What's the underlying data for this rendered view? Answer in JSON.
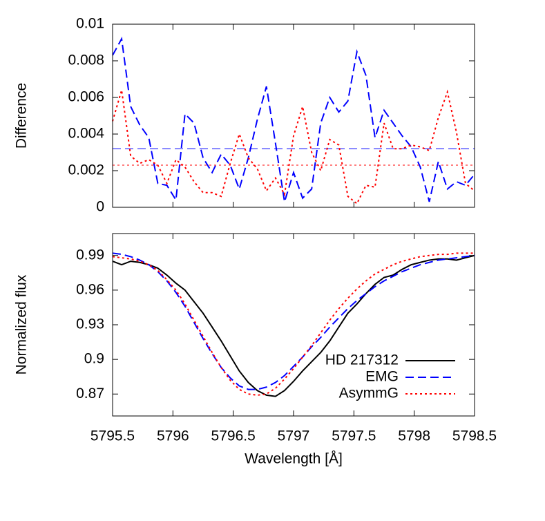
{
  "chart_data": [
    {
      "type": "line",
      "ylabel": "Difference",
      "x": [
        5795.5,
        5795.575,
        5795.65,
        5795.725,
        5795.8,
        5795.875,
        5795.95,
        5796.025,
        5796.1,
        5796.175,
        5796.25,
        5796.325,
        5796.4,
        5796.475,
        5796.55,
        5796.625,
        5796.7,
        5796.775,
        5796.85,
        5796.925,
        5797,
        5797.075,
        5797.15,
        5797.225,
        5797.3,
        5797.375,
        5797.45,
        5797.525,
        5797.6,
        5797.675,
        5797.75,
        5797.825,
        5797.9,
        5797.975,
        5798.05,
        5798.125,
        5798.2,
        5798.275,
        5798.35,
        5798.425,
        5798.5
      ],
      "series": [
        {
          "color": "#0000ff",
          "style": "dashed",
          "values": [
            0.0083,
            0.0092,
            0.0055,
            0.0045,
            0.0038,
            0.0013,
            0.0012,
            0.0004,
            0.0051,
            0.0046,
            0.0027,
            0.0019,
            0.0029,
            0.0023,
            0.001,
            0.0027,
            0.0048,
            0.0066,
            0.0035,
            0.0003,
            0.0019,
            0.0005,
            0.001,
            0.0046,
            0.006,
            0.0052,
            0.0058,
            0.0085,
            0.0072,
            0.0038,
            0.0053,
            0.0046,
            0.0039,
            0.0033,
            0.0022,
            0.0003,
            0.0025,
            0.001,
            0.0014,
            0.0012,
            0.0018
          ]
        },
        {
          "color": "#ff0000",
          "style": "dotted",
          "values": [
            0.0047,
            0.0064,
            0.0028,
            0.0024,
            0.0026,
            0.0023,
            0.0013,
            0.0026,
            0.0022,
            0.0014,
            0.0008,
            0.0008,
            0.0006,
            0.0024,
            0.004,
            0.0027,
            0.0021,
            0.0009,
            0.0016,
            0.0007,
            0.0039,
            0.0055,
            0.003,
            0.002,
            0.0037,
            0.0034,
            0.0006,
            0.0002,
            0.0012,
            0.0011,
            0.0046,
            0.0032,
            0.0032,
            0.0034,
            0.0033,
            0.0031,
            0.0049,
            0.0063,
            0.0041,
            0.0013,
            0.0009
          ]
        }
      ],
      "hlines": [
        {
          "value": 0.0032,
          "color": "#0000ff",
          "style": "dashed"
        },
        {
          "value": 0.0023,
          "color": "#ff0000",
          "style": "dotted"
        }
      ],
      "xlim": [
        5795.5,
        5798.5
      ],
      "xticks": [
        5795.5,
        5796,
        5796.5,
        5797,
        5797.5,
        5798,
        5798.5
      ],
      "ylim": [
        0,
        0.01
      ],
      "yticks": [
        0,
        0.002,
        0.004,
        0.006,
        0.008,
        0.01
      ]
    },
    {
      "type": "line",
      "ylabel": "Normalized flux",
      "xlabel": "Wavelength [Å]",
      "legend": "bottom-right",
      "x": [
        5795.5,
        5795.575,
        5795.65,
        5795.725,
        5795.8,
        5795.875,
        5795.95,
        5796.025,
        5796.1,
        5796.175,
        5796.25,
        5796.325,
        5796.4,
        5796.475,
        5796.55,
        5796.625,
        5796.7,
        5796.775,
        5796.85,
        5796.925,
        5797,
        5797.075,
        5797.15,
        5797.225,
        5797.3,
        5797.375,
        5797.45,
        5797.525,
        5797.6,
        5797.675,
        5797.75,
        5797.825,
        5797.9,
        5797.975,
        5798.05,
        5798.125,
        5798.2,
        5798.275,
        5798.35,
        5798.425,
        5798.5
      ],
      "series": [
        {
          "name": "HD 217312",
          "color": "#000000",
          "style": "solid",
          "values": [
            0.985,
            0.982,
            0.985,
            0.984,
            0.982,
            0.979,
            0.973,
            0.966,
            0.96,
            0.95,
            0.94,
            0.928,
            0.916,
            0.903,
            0.89,
            0.88,
            0.873,
            0.869,
            0.868,
            0.873,
            0.881,
            0.89,
            0.898,
            0.906,
            0.916,
            0.928,
            0.94,
            0.948,
            0.957,
            0.965,
            0.971,
            0.973,
            0.978,
            0.982,
            0.984,
            0.986,
            0.987,
            0.987,
            0.986,
            0.988,
            0.99
          ]
        },
        {
          "name": "EMG",
          "color": "#0000ff",
          "style": "dashed",
          "values": [
            0.992,
            0.991,
            0.989,
            0.986,
            0.982,
            0.976,
            0.968,
            0.958,
            0.946,
            0.932,
            0.918,
            0.905,
            0.893,
            0.884,
            0.877,
            0.874,
            0.874,
            0.876,
            0.88,
            0.886,
            0.894,
            0.902,
            0.911,
            0.919,
            0.928,
            0.936,
            0.944,
            0.951,
            0.957,
            0.963,
            0.968,
            0.972,
            0.976,
            0.979,
            0.982,
            0.984,
            0.986,
            0.987,
            0.988,
            0.989,
            0.99
          ]
        },
        {
          "name": "AsymmG",
          "color": "#ff0000",
          "style": "dotted",
          "values": [
            0.989,
            0.988,
            0.987,
            0.985,
            0.982,
            0.977,
            0.969,
            0.96,
            0.948,
            0.934,
            0.92,
            0.906,
            0.893,
            0.882,
            0.874,
            0.87,
            0.869,
            0.87,
            0.875,
            0.883,
            0.892,
            0.902,
            0.912,
            0.923,
            0.934,
            0.944,
            0.953,
            0.961,
            0.968,
            0.974,
            0.978,
            0.982,
            0.985,
            0.987,
            0.989,
            0.99,
            0.991,
            0.991,
            0.992,
            0.992,
            0.992
          ]
        }
      ],
      "xlim": [
        5795.5,
        5798.5
      ],
      "xticks": [
        5795.5,
        5796,
        5796.5,
        5797,
        5797.5,
        5798,
        5798.5
      ],
      "ylim": [
        0.851,
        1.009
      ],
      "yticks": [
        0.87,
        0.9,
        0.93,
        0.96,
        0.99
      ]
    }
  ]
}
